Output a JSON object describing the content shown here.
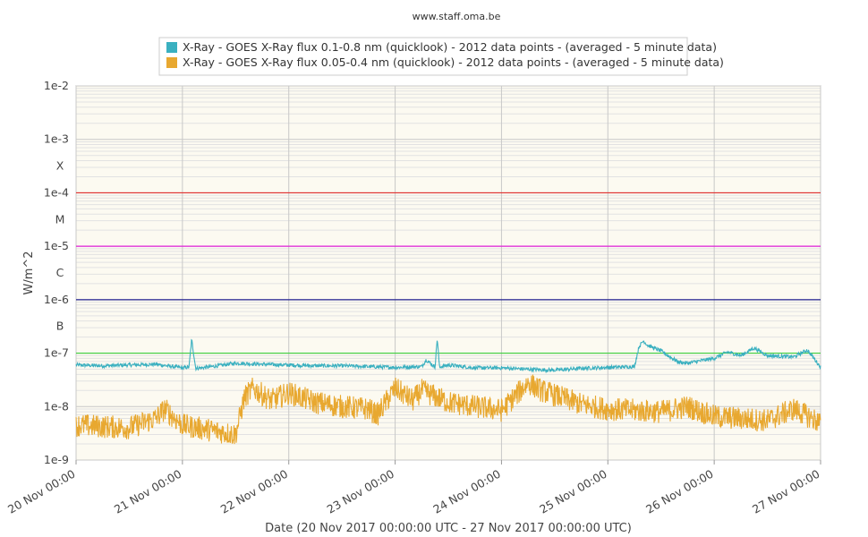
{
  "credit": "www.staff.oma.be",
  "chart_data": {
    "type": "line",
    "y_scale": "log",
    "ylim": [
      1e-09,
      0.01
    ],
    "y_ticks": [
      {
        "value": 0.01,
        "label": "1e-2"
      },
      {
        "value": 0.001,
        "label": "1e-3"
      },
      {
        "value": 0.0001,
        "label": "1e-4"
      },
      {
        "value": 1e-05,
        "label": "1e-5"
      },
      {
        "value": 1e-06,
        "label": "1e-6"
      },
      {
        "value": 1e-07,
        "label": "1e-7"
      },
      {
        "value": 1e-08,
        "label": "1e-8"
      },
      {
        "value": 1e-09,
        "label": "1e-9"
      }
    ],
    "flare_class_labels": [
      {
        "value": 0.0003162,
        "label": "X"
      },
      {
        "value": 3.162e-05,
        "label": "M"
      },
      {
        "value": 3.162e-06,
        "label": "C"
      },
      {
        "value": 3.162e-07,
        "label": "B"
      }
    ],
    "threshold_lines": [
      {
        "value": 0.0001,
        "color": "#e03030"
      },
      {
        "value": 1e-05,
        "color": "#e020d8"
      },
      {
        "value": 1e-06,
        "color": "#202090"
      },
      {
        "value": 1e-07,
        "color": "#40d040"
      }
    ],
    "xlim": [
      "2017-11-20 00:00",
      "2017-11-27 00:00"
    ],
    "x_ticks": [
      "20 Nov 00:00",
      "21 Nov 00:00",
      "22 Nov 00:00",
      "23 Nov 00:00",
      "24 Nov 00:00",
      "25 Nov 00:00",
      "26 Nov 00:00",
      "27 Nov 00:00"
    ],
    "xlabel": "Date (20 Nov 2017 00:00:00 UTC - 27 Nov 2017 00:00:00 UTC)",
    "ylabel": "W/m^2",
    "grid": true,
    "legend_position": "top-center",
    "series": [
      {
        "name": "X-Ray - GOES X-Ray flux 0.1-0.8 nm (quicklook) - 2012 data points -  (averaged - 5 minute data)",
        "color": "#3ab0c0",
        "x": [
          "2017-11-20 00:00",
          "2017-11-20 06:00",
          "2017-11-20 12:00",
          "2017-11-20 18:00",
          "2017-11-21 00:00",
          "2017-11-21 01:30",
          "2017-11-21 02:05",
          "2017-11-21 03:00",
          "2017-11-21 06:00",
          "2017-11-21 12:00",
          "2017-11-21 18:00",
          "2017-11-22 00:00",
          "2017-11-22 06:00",
          "2017-11-22 12:00",
          "2017-11-22 18:00",
          "2017-11-23 00:00",
          "2017-11-23 06:00",
          "2017-11-23 07:00",
          "2017-11-23 09:00",
          "2017-11-23 09:30",
          "2017-11-23 10:00",
          "2017-11-23 12:00",
          "2017-11-23 18:00",
          "2017-11-24 00:00",
          "2017-11-24 06:00",
          "2017-11-24 12:00",
          "2017-11-24 18:00",
          "2017-11-25 00:00",
          "2017-11-25 06:00",
          "2017-11-25 07:00",
          "2017-11-25 08:00",
          "2017-11-25 09:00",
          "2017-11-25 12:00",
          "2017-11-25 14:00",
          "2017-11-25 16:00",
          "2017-11-25 18:00",
          "2017-11-26 00:00",
          "2017-11-26 03:00",
          "2017-11-26 06:00",
          "2017-11-26 09:00",
          "2017-11-26 12:00",
          "2017-11-26 18:00",
          "2017-11-26 21:00",
          "2017-11-27 00:00"
        ],
        "y": [
          6e-08,
          5.8e-08,
          6e-08,
          6.2e-08,
          5.3e-08,
          5.5e-08,
          1.8e-07,
          5.2e-08,
          5.5e-08,
          6.5e-08,
          6.2e-08,
          6e-08,
          5.8e-08,
          5.8e-08,
          5.6e-08,
          5.4e-08,
          5.6e-08,
          7.5e-08,
          5.5e-08,
          1.9e-07,
          5.5e-08,
          6e-08,
          5.3e-08,
          5.3e-08,
          5e-08,
          4.8e-08,
          5.2e-08,
          5.4e-08,
          5.6e-08,
          1.3e-07,
          1.7e-07,
          1.4e-07,
          1.1e-07,
          8.5e-08,
          6.8e-08,
          6.5e-08,
          8e-08,
          1.05e-07,
          9e-08,
          1.25e-07,
          9e-08,
          8.5e-08,
          1.15e-07,
          5.5e-08
        ]
      },
      {
        "name": "X-Ray - GOES X-Ray flux 0.05-0.4 nm (quicklook) - 2012 data points -  (averaged - 5 minute data)",
        "color": "#e8a830",
        "x": [
          "2017-11-20 00:00",
          "2017-11-20 12:00",
          "2017-11-20 18:00",
          "2017-11-20 20:00",
          "2017-11-21 00:00",
          "2017-11-21 12:00",
          "2017-11-21 14:00",
          "2017-11-21 16:00",
          "2017-11-21 20:00",
          "2017-11-22 00:00",
          "2017-11-22 06:00",
          "2017-11-22 12:00",
          "2017-11-22 18:00",
          "2017-11-22 20:00",
          "2017-11-23 00:00",
          "2017-11-23 04:00",
          "2017-11-23 06:00",
          "2017-11-23 12:00",
          "2017-11-23 18:00",
          "2017-11-24 00:00",
          "2017-11-24 06:00",
          "2017-11-24 09:00",
          "2017-11-24 18:00",
          "2017-11-25 00:00",
          "2017-11-25 12:00",
          "2017-11-25 18:00",
          "2017-11-26 00:00",
          "2017-11-26 12:00",
          "2017-11-26 18:00",
          "2017-11-27 00:00"
        ],
        "y": [
          4.5e-09,
          4e-09,
          6e-09,
          9e-09,
          4.5e-09,
          3e-09,
          1.5e-08,
          2.2e-08,
          1.3e-08,
          1.8e-08,
          1.2e-08,
          1e-08,
          9e-09,
          7e-09,
          2.2e-08,
          1.3e-08,
          2e-08,
          1.2e-08,
          1e-08,
          8.5e-09,
          2.8e-08,
          2e-08,
          1.1e-08,
          9e-09,
          8e-09,
          1e-08,
          6.5e-09,
          5.5e-09,
          9e-09,
          5e-09
        ]
      }
    ]
  }
}
